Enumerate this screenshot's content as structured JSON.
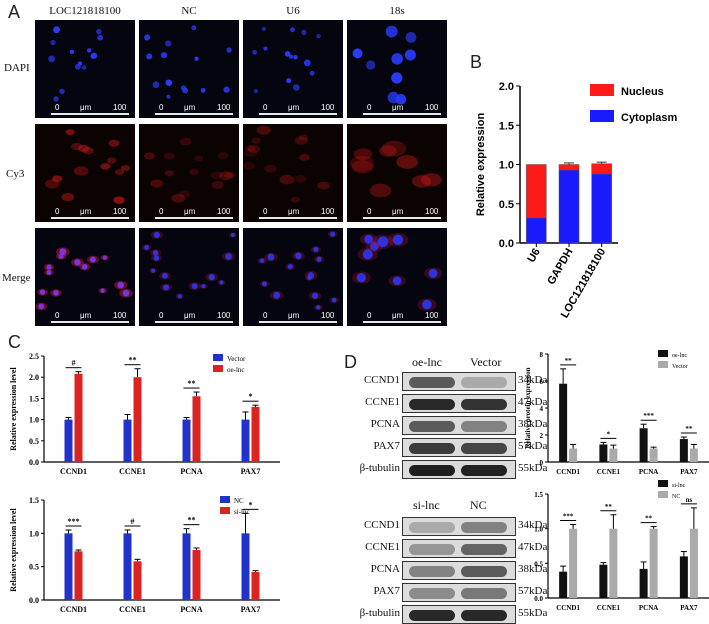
{
  "panels": {
    "A": "A",
    "B": "B",
    "C": "C",
    "D": "D"
  },
  "panelA": {
    "columns": [
      "LOC121818100",
      "NC",
      "U6",
      "18s"
    ],
    "rows": [
      "DAPI",
      "Cy3",
      "Merge"
    ],
    "scale": {
      "zero": "0",
      "unit": "μm",
      "max": "100"
    }
  },
  "blots": {
    "top": {
      "lanes": [
        "oe-lnc",
        "Vector"
      ],
      "proteins": [
        "CCND1",
        "CCNE1",
        "PCNA",
        "PAX7",
        "β-tubulin"
      ],
      "kda": [
        "34kDa",
        "47kDa",
        "38kDa",
        "57kDa",
        "55kDa"
      ]
    },
    "bottom": {
      "lanes": [
        "si-lnc",
        "NC"
      ],
      "proteins": [
        "CCND1",
        "CCNE1",
        "PCNA",
        "PAX7",
        "β-tubulin"
      ],
      "kda": [
        "34kDa",
        "47kDa",
        "38kDa",
        "57kDa",
        "55kDa"
      ]
    }
  },
  "colors": {
    "nucleus": "#ff1a1a",
    "cytoplasm": "#1a1aff",
    "red": "#dd2222",
    "blue": "#2233cc",
    "black": "#111111",
    "gray": "#aaaaaa"
  },
  "chart_data": [
    {
      "id": "B",
      "type": "bar",
      "stacked": true,
      "categories": [
        "U6",
        "GAPDH",
        "LOC121818100"
      ],
      "series": [
        {
          "name": "Cytoplasm",
          "values": [
            0.32,
            0.93,
            0.88
          ],
          "color": "#1a1aff"
        },
        {
          "name": "Nucleus",
          "values": [
            0.68,
            0.07,
            0.13
          ],
          "color": "#ff1a1a"
        }
      ],
      "error": [
        0,
        0.02,
        0.02
      ],
      "ylabel": "Relative expression",
      "ylim": [
        0,
        2.0
      ],
      "yticks": [
        "0.0",
        "0.5",
        "1.0",
        "1.5",
        "2.0"
      ],
      "legend": "top-right"
    },
    {
      "id": "C-top",
      "type": "bar",
      "categories": [
        "CCND1",
        "CCNE1",
        "PCNA",
        "PAX7"
      ],
      "series": [
        {
          "name": "Vector",
          "values": [
            1.0,
            1.0,
            1.0,
            1.0
          ],
          "errors": [
            0.05,
            0.12,
            0.05,
            0.18
          ],
          "color": "#2233cc"
        },
        {
          "name": "oe-lnc",
          "values": [
            2.08,
            2.0,
            1.55,
            1.3
          ],
          "errors": [
            0.05,
            0.2,
            0.1,
            0.04
          ],
          "color": "#dd2222"
        }
      ],
      "significance": [
        "#",
        "**",
        "**",
        "*"
      ],
      "ylabel": "Relative expression level",
      "ylim": [
        0,
        2.5
      ],
      "yticks": [
        "0.0",
        "0.5",
        "1.0",
        "1.5",
        "2.0",
        "2.5"
      ],
      "legend": "top-right"
    },
    {
      "id": "C-bottom",
      "type": "bar",
      "categories": [
        "CCND1",
        "CCNE1",
        "PCNA",
        "PAX7"
      ],
      "series": [
        {
          "name": "NC",
          "values": [
            1.0,
            1.0,
            1.0,
            1.0
          ],
          "errors": [
            0.05,
            0.05,
            0.07,
            0.3
          ],
          "color": "#2233cc"
        },
        {
          "name": "si-lnc",
          "values": [
            0.73,
            0.58,
            0.75,
            0.42
          ],
          "errors": [
            0.02,
            0.03,
            0.03,
            0.02
          ],
          "color": "#dd2222"
        }
      ],
      "significance": [
        "***",
        "#",
        "**",
        "*"
      ],
      "ylabel": "Relative expression level",
      "ylim": [
        0,
        1.5
      ],
      "yticks": [
        "0.0",
        "0.5",
        "1.0",
        "1.5"
      ],
      "legend": "top-right"
    },
    {
      "id": "D-top",
      "type": "bar",
      "categories": [
        "CCND1",
        "CCNE1",
        "PCNA",
        "PAX7"
      ],
      "series": [
        {
          "name": "oe-lnc",
          "values": [
            5.8,
            1.3,
            2.5,
            1.7
          ],
          "errors": [
            1.1,
            0.15,
            0.3,
            0.15
          ],
          "color": "#111111"
        },
        {
          "name": "Vector",
          "values": [
            1.0,
            1.0,
            1.0,
            1.0
          ],
          "errors": [
            0.3,
            0.25,
            0.1,
            0.3
          ],
          "color": "#aaaaaa"
        }
      ],
      "significance": [
        "**",
        "*",
        "***",
        "**"
      ],
      "ylabel": "Relative protein expression",
      "ylim": [
        0,
        8
      ],
      "yticks": [
        "0",
        "2",
        "4",
        "6",
        "8"
      ],
      "legend": "top-right"
    },
    {
      "id": "D-bottom",
      "type": "bar",
      "categories": [
        "CCND1",
        "CCNE1",
        "PCNA",
        "PAX7"
      ],
      "series": [
        {
          "name": "si-lnc",
          "values": [
            0.38,
            0.48,
            0.42,
            0.6
          ],
          "errors": [
            0.08,
            0.03,
            0.1,
            0.07
          ],
          "color": "#111111"
        },
        {
          "name": "NC",
          "values": [
            1.0,
            1.0,
            1.0,
            1.0
          ],
          "errors": [
            0.06,
            0.2,
            0.03,
            0.3
          ],
          "color": "#aaaaaa"
        }
      ],
      "significance": [
        "***",
        "**",
        "**",
        "ns"
      ],
      "ylabel": "",
      "ylim": [
        0,
        1.5
      ],
      "yticks": [
        "0.0",
        "0.5",
        "1.0",
        "1.5"
      ],
      "legend": "top-right"
    }
  ]
}
